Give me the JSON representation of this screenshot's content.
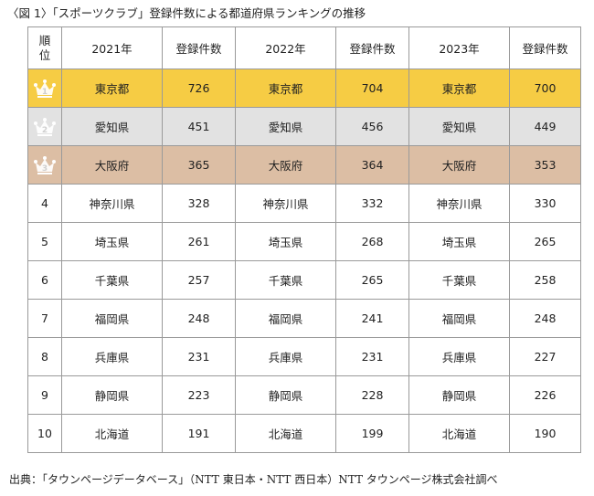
{
  "caption": "〈図 1〉「スポーツクラブ」登録件数による都道府県ランキングの推移",
  "table": {
    "headers": {
      "rank_line1": "順",
      "rank_line2": "位",
      "year_2021": "2021年",
      "count_2021": "登録件数",
      "year_2022": "2022年",
      "count_2022": "登録件数",
      "year_2023": "2023年",
      "count_2023": "登録件数"
    },
    "rows": [
      {
        "rank": "1",
        "p2021": "東京都",
        "c2021": "726",
        "p2022": "東京都",
        "c2022": "704",
        "p2023": "東京都",
        "c2023": "700"
      },
      {
        "rank": "2",
        "p2021": "愛知県",
        "c2021": "451",
        "p2022": "愛知県",
        "c2022": "456",
        "p2023": "愛知県",
        "c2023": "449"
      },
      {
        "rank": "3",
        "p2021": "大阪府",
        "c2021": "365",
        "p2022": "大阪府",
        "c2022": "364",
        "p2023": "大阪府",
        "c2023": "353"
      },
      {
        "rank": "4",
        "p2021": "神奈川県",
        "c2021": "328",
        "p2022": "神奈川県",
        "c2022": "332",
        "p2023": "神奈川県",
        "c2023": "330"
      },
      {
        "rank": "5",
        "p2021": "埼玉県",
        "c2021": "261",
        "p2022": "埼玉県",
        "c2022": "268",
        "p2023": "埼玉県",
        "c2023": "265"
      },
      {
        "rank": "6",
        "p2021": "千葉県",
        "c2021": "257",
        "p2022": "千葉県",
        "c2022": "265",
        "p2023": "千葉県",
        "c2023": "258"
      },
      {
        "rank": "7",
        "p2021": "福岡県",
        "c2021": "248",
        "p2022": "福岡県",
        "c2022": "241",
        "p2023": "福岡県",
        "c2023": "248"
      },
      {
        "rank": "8",
        "p2021": "兵庫県",
        "c2021": "231",
        "p2022": "兵庫県",
        "c2022": "231",
        "p2023": "兵庫県",
        "c2023": "227"
      },
      {
        "rank": "9",
        "p2021": "静岡県",
        "c2021": "223",
        "p2022": "静岡県",
        "c2022": "228",
        "p2023": "静岡県",
        "c2023": "226"
      },
      {
        "rank": "10",
        "p2021": "北海道",
        "c2021": "191",
        "p2022": "北海道",
        "c2022": "199",
        "p2023": "北海道",
        "c2023": "190"
      }
    ]
  },
  "colors": {
    "gold_row": "#f6cc44",
    "silver_row": "#e2e2e2",
    "bronze_row": "#dcbea4",
    "crown": "#ffffff"
  },
  "icons": {
    "rank_1": "crown-icon",
    "rank_2": "crown-icon",
    "rank_3": "crown-icon"
  },
  "footer": "出典：「タウンページデータベース」（NTT 東日本・NTT 西日本）NTT タウンページ株式会社調べ"
}
